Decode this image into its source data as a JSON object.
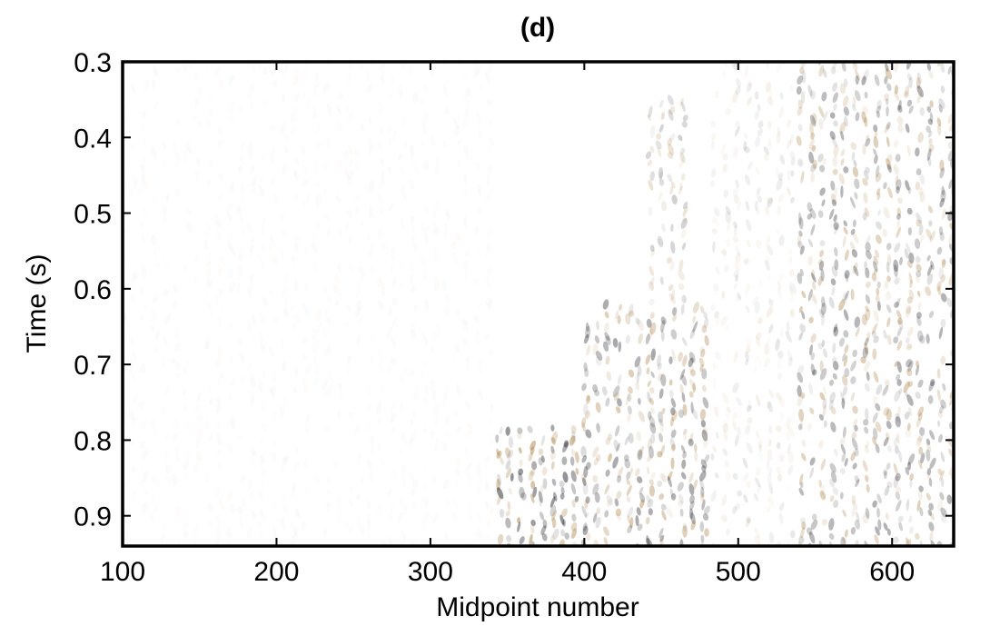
{
  "chart_data": {
    "type": "heatmap",
    "title": "(d)",
    "xlabel": "Midpoint number",
    "ylabel": "Time (s)",
    "xlim": [
      100,
      640
    ],
    "ylim": [
      0.3,
      0.94
    ],
    "y_inverted": true,
    "x_ticks": [
      100,
      200,
      300,
      400,
      500,
      600
    ],
    "x_tick_labels": [
      "100",
      "200",
      "300",
      "400",
      "500",
      "600"
    ],
    "y_ticks": [
      0.3,
      0.4,
      0.5,
      0.6,
      0.7,
      0.8,
      0.9
    ],
    "y_tick_labels": [
      "0.3",
      "0.4",
      "0.5",
      "0.6",
      "0.7",
      "0.8",
      "0.9"
    ],
    "grid": false,
    "legend": "none",
    "colors": {
      "negative": "#2f2f34",
      "positive": "#a67c3f",
      "background": "#ffffff",
      "frame": "#000000"
    },
    "energy_zones": [
      {
        "x": [
          100,
          340
        ],
        "t": [
          0.3,
          0.94
        ],
        "amplitude": 0.03
      },
      {
        "x": [
          340,
          400
        ],
        "t": [
          0.78,
          0.94
        ],
        "amplitude": 0.7
      },
      {
        "x": [
          400,
          480
        ],
        "t": [
          0.62,
          0.94
        ],
        "amplitude": 0.55
      },
      {
        "x": [
          440,
          470
        ],
        "t": [
          0.35,
          0.62
        ],
        "amplitude": 0.3
      },
      {
        "x": [
          480,
          540
        ],
        "t": [
          0.3,
          0.94
        ],
        "amplitude": 0.15
      },
      {
        "x": [
          540,
          640
        ],
        "t": [
          0.3,
          0.94
        ],
        "amplitude": 0.5
      }
    ]
  }
}
